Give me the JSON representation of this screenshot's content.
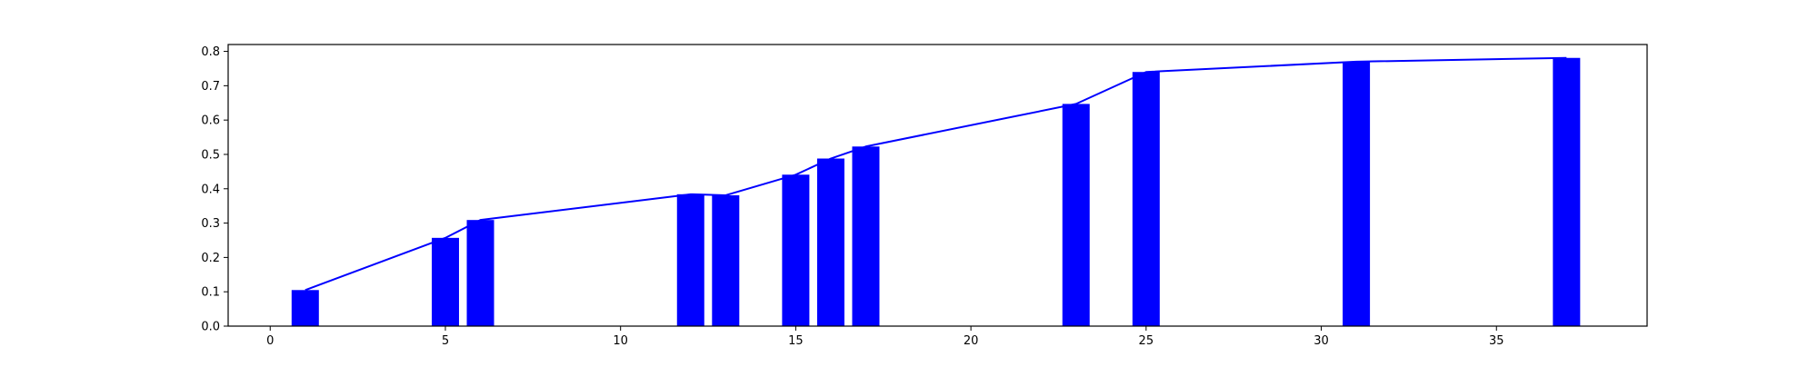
{
  "chart_data": {
    "type": "bar",
    "x": [
      1,
      5,
      6,
      12,
      13,
      15,
      16,
      17,
      23,
      25,
      31,
      37
    ],
    "values": [
      0.105,
      0.257,
      0.309,
      0.384,
      0.381,
      0.441,
      0.488,
      0.523,
      0.647,
      0.74,
      0.77,
      0.781
    ],
    "line_overlay": true,
    "xlim": [
      -1.2,
      39.3
    ],
    "ylim": [
      0.0,
      0.82
    ],
    "xticks": [
      {
        "value": 0,
        "label": "0"
      },
      {
        "value": 5,
        "label": "5"
      },
      {
        "value": 10,
        "label": "10"
      },
      {
        "value": 15,
        "label": "15"
      },
      {
        "value": 20,
        "label": "20"
      },
      {
        "value": 25,
        "label": "25"
      },
      {
        "value": 30,
        "label": "30"
      },
      {
        "value": 35,
        "label": "35"
      }
    ],
    "yticks": [
      {
        "value": 0.0,
        "label": "0.0"
      },
      {
        "value": 0.1,
        "label": "0.1"
      },
      {
        "value": 0.2,
        "label": "0.2"
      },
      {
        "value": 0.3,
        "label": "0.3"
      },
      {
        "value": 0.4,
        "label": "0.4"
      },
      {
        "value": 0.5,
        "label": "0.5"
      },
      {
        "value": 0.6,
        "label": "0.6"
      },
      {
        "value": 0.7,
        "label": "0.7"
      },
      {
        "value": 0.8,
        "label": "0.8"
      }
    ],
    "grid": false,
    "bar_color": "#0000ff",
    "line_color": "#0000ff",
    "title": "",
    "xlabel": "",
    "ylabel": ""
  }
}
